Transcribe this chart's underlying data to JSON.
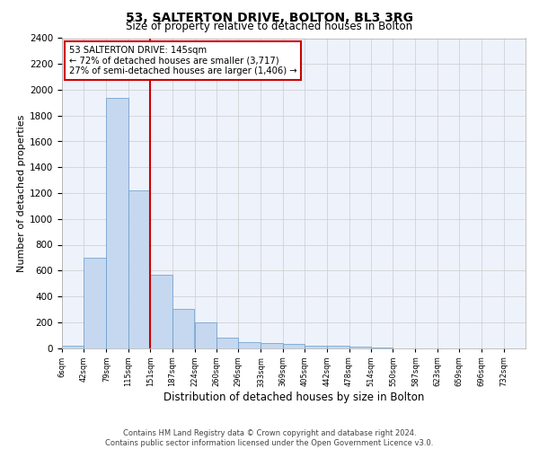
{
  "title": "53, SALTERTON DRIVE, BOLTON, BL3 3RG",
  "subtitle": "Size of property relative to detached houses in Bolton",
  "xlabel": "Distribution of detached houses by size in Bolton",
  "ylabel": "Number of detached properties",
  "footer_line1": "Contains HM Land Registry data © Crown copyright and database right 2024.",
  "footer_line2": "Contains public sector information licensed under the Open Government Licence v3.0.",
  "bin_labels": [
    "6sqm",
    "42sqm",
    "79sqm",
    "115sqm",
    "151sqm",
    "187sqm",
    "224sqm",
    "260sqm",
    "296sqm",
    "333sqm",
    "369sqm",
    "405sqm",
    "442sqm",
    "478sqm",
    "514sqm",
    "550sqm",
    "587sqm",
    "623sqm",
    "659sqm",
    "696sqm",
    "732sqm"
  ],
  "bar_values": [
    15,
    700,
    1940,
    1220,
    570,
    305,
    200,
    80,
    45,
    35,
    30,
    15,
    20,
    10,
    5,
    0,
    0,
    0,
    0,
    0
  ],
  "bar_color": "#c5d8ef",
  "bar_edge_color": "#6699cc",
  "vline_color": "#cc0000",
  "ylim": [
    0,
    2400
  ],
  "yticks": [
    0,
    200,
    400,
    600,
    800,
    1000,
    1200,
    1400,
    1600,
    1800,
    2000,
    2200,
    2400
  ],
  "bin_edges": [
    6,
    42,
    79,
    115,
    151,
    187,
    224,
    260,
    296,
    333,
    369,
    405,
    442,
    478,
    514,
    550,
    587,
    623,
    659,
    696,
    732
  ],
  "bg_color": "#eef2fb",
  "annotation_line1": "53 SALTERTON DRIVE: 145sqm",
  "annotation_line2": "← 72% of detached houses are smaller (3,717)",
  "annotation_line3": "27% of semi-detached houses are larger (1,406) →",
  "annotation_box_color": "#ffffff",
  "annotation_box_edge": "#cc0000",
  "prop_sqm": 145,
  "title_fontsize": 10,
  "subtitle_fontsize": 8.5,
  "ylabel_fontsize": 8,
  "xlabel_fontsize": 8.5,
  "footer_fontsize": 6
}
